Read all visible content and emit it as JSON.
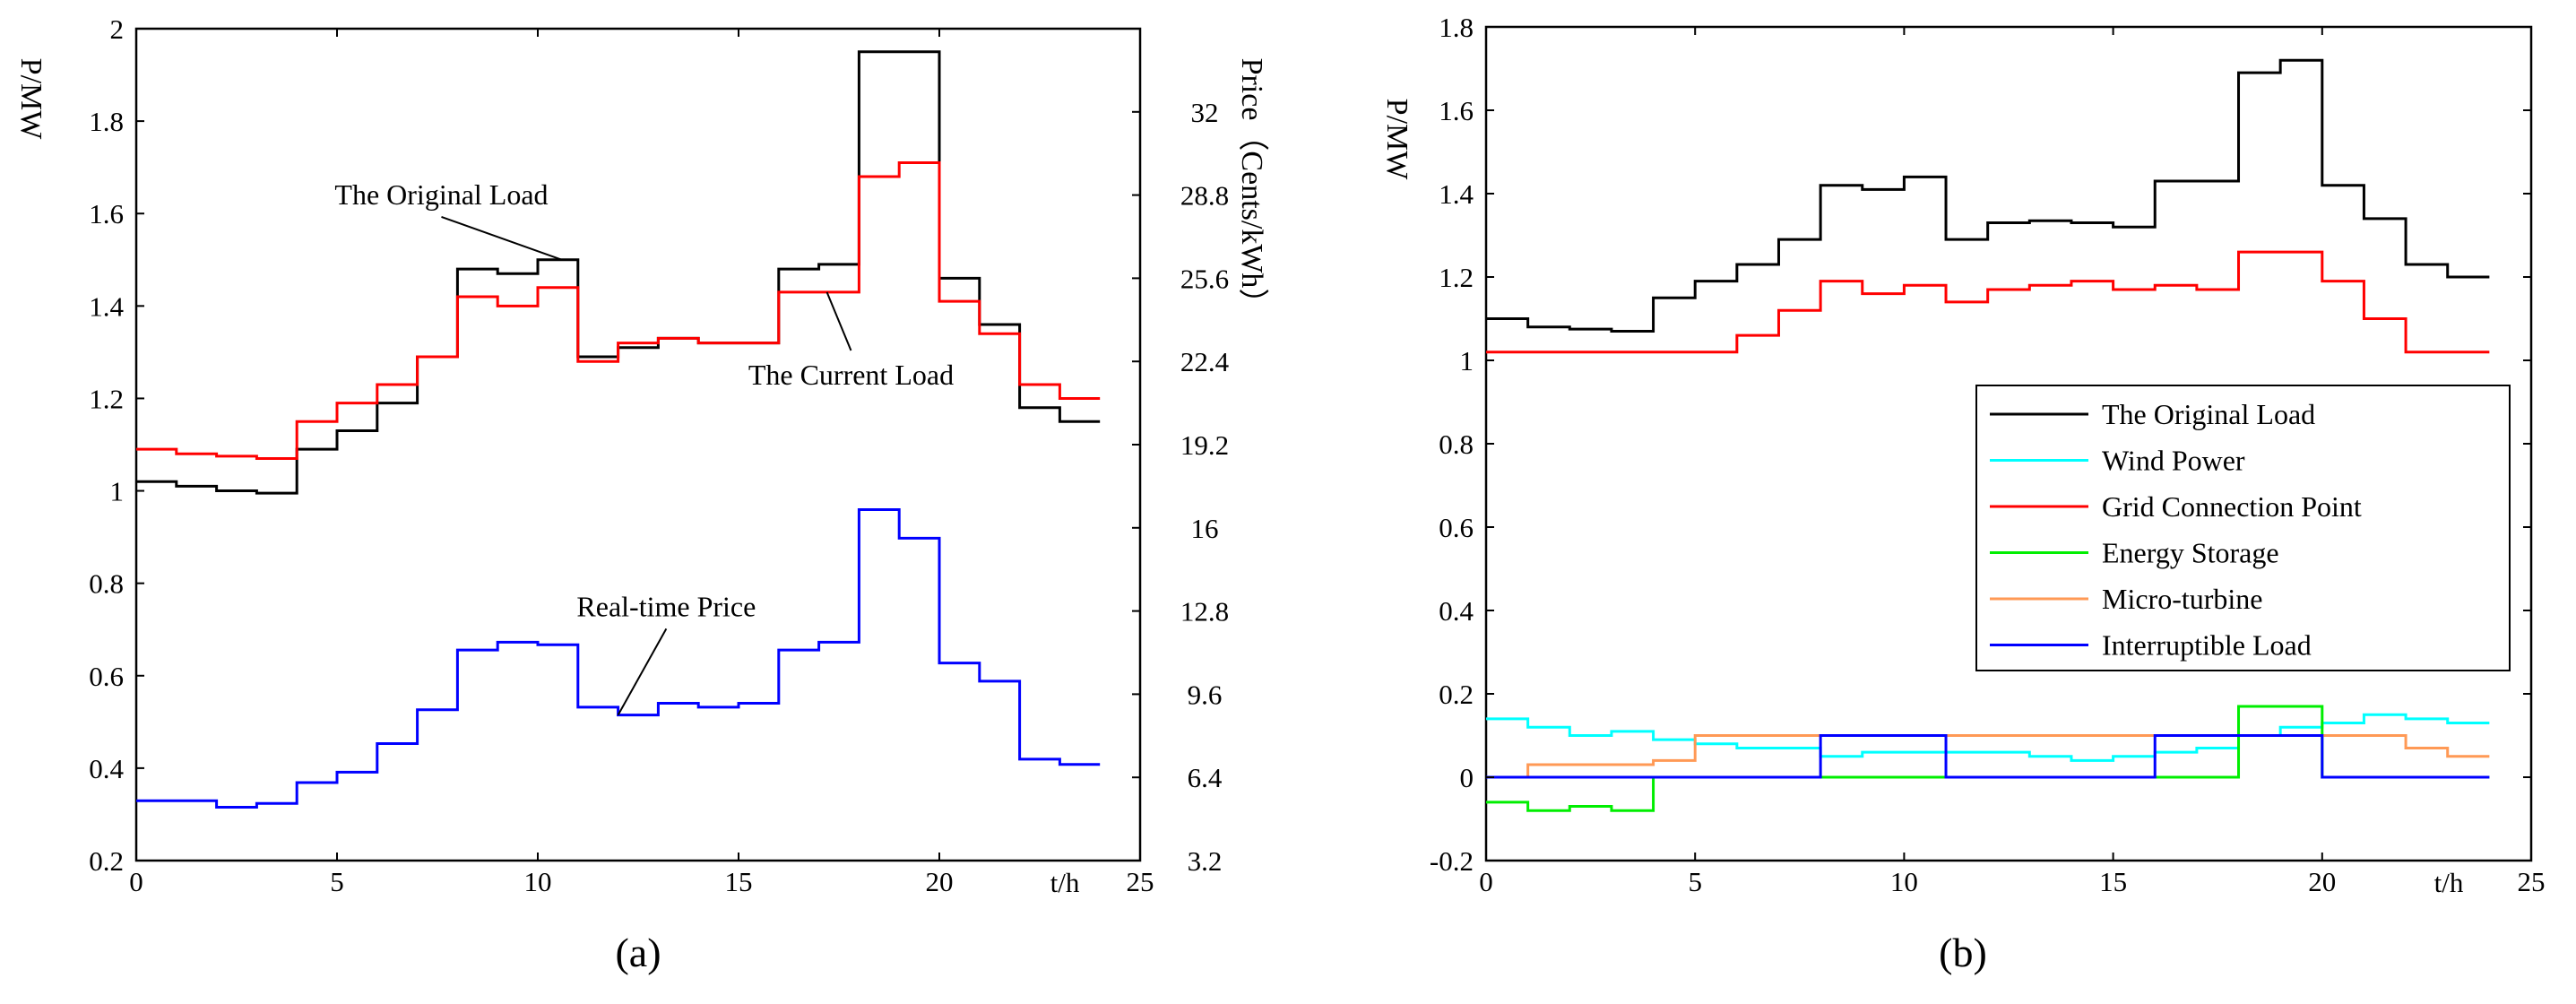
{
  "chart_data": [
    {
      "type": "line",
      "step": true,
      "panel_label": "(a)",
      "xlabel": "t/h",
      "ylabel": "P/MW",
      "y2label": "Price（Cents/kWh）",
      "xlim": [
        0,
        25
      ],
      "ylim": [
        0.2,
        2
      ],
      "y2lim": [
        3.2,
        35.2
      ],
      "x_ticks": [
        "0",
        "5",
        "10",
        "15",
        "20",
        "25"
      ],
      "y_ticks": [
        "0.2",
        "0.4",
        "0.6",
        "0.8",
        "1",
        "1.2",
        "1.4",
        "1.6",
        "1.8",
        "2"
      ],
      "y2_ticks": [
        "3.2",
        "6.4",
        "9.6",
        "12.8",
        "16",
        "19.2",
        "22.4",
        "25.6",
        "28.8",
        "32"
      ],
      "x": [
        0,
        1,
        2,
        3,
        4,
        5,
        6,
        7,
        8,
        9,
        10,
        11,
        12,
        13,
        14,
        15,
        16,
        17,
        18,
        19,
        20,
        21,
        22,
        23,
        24
      ],
      "series": [
        {
          "name": "The Original Load",
          "color": "#000000",
          "axis": "left",
          "values": [
            1.02,
            1.01,
            1.0,
            0.995,
            1.09,
            1.13,
            1.19,
            1.29,
            1.48,
            1.47,
            1.5,
            1.29,
            1.31,
            1.33,
            1.32,
            1.32,
            1.48,
            1.49,
            1.95,
            1.95,
            1.46,
            1.36,
            1.18,
            1.15,
            1.15
          ]
        },
        {
          "name": "The Current Load",
          "color": "#ff0000",
          "axis": "left",
          "values": [
            1.09,
            1.08,
            1.075,
            1.07,
            1.15,
            1.19,
            1.23,
            1.29,
            1.42,
            1.4,
            1.44,
            1.28,
            1.32,
            1.33,
            1.32,
            1.32,
            1.43,
            1.43,
            1.68,
            1.71,
            1.41,
            1.34,
            1.23,
            1.2,
            1.2
          ]
        },
        {
          "name": "Real-time Price",
          "color": "#0000ff",
          "axis": "right",
          "values": [
            5.5,
            5.5,
            5.25,
            5.4,
            6.2,
            6.6,
            7.7,
            9.0,
            11.3,
            11.6,
            11.5,
            9.1,
            8.8,
            9.25,
            9.1,
            9.25,
            11.3,
            11.6,
            16.7,
            15.6,
            10.8,
            10.1,
            7.1,
            6.9,
            6.9
          ]
        }
      ],
      "annotations": [
        {
          "text": "The Original Load",
          "target": [
            10.6,
            1.5
          ],
          "pos": [
            7.6,
            1.62
          ]
        },
        {
          "text": "The Current Load",
          "target": [
            17.2,
            1.43
          ],
          "pos": [
            17.8,
            1.23
          ]
        },
        {
          "text": "Real-time Price",
          "target": [
            12,
            8.8
          ],
          "pos": [
            13.2,
            12.6
          ]
        }
      ]
    },
    {
      "type": "line",
      "step": true,
      "panel_label": "(b)",
      "xlabel": "t/h",
      "ylabel": "P/MW",
      "xlim": [
        0,
        25
      ],
      "ylim": [
        -0.2,
        1.8
      ],
      "x_ticks": [
        "0",
        "5",
        "10",
        "15",
        "20",
        "25"
      ],
      "y_ticks": [
        "-0.2",
        "0",
        "0.2",
        "0.4",
        "0.6",
        "0.8",
        "1",
        "1.2",
        "1.4",
        "1.6",
        "1.8"
      ],
      "legend_position": "center-right",
      "x": [
        0,
        1,
        2,
        3,
        4,
        5,
        6,
        7,
        8,
        9,
        10,
        11,
        12,
        13,
        14,
        15,
        16,
        17,
        18,
        19,
        20,
        21,
        22,
        23,
        24
      ],
      "series": [
        {
          "name": "The Original Load",
          "color": "#000000",
          "values": [
            1.1,
            1.08,
            1.075,
            1.07,
            1.15,
            1.19,
            1.23,
            1.29,
            1.42,
            1.41,
            1.44,
            1.29,
            1.33,
            1.335,
            1.33,
            1.32,
            1.43,
            1.43,
            1.69,
            1.72,
            1.42,
            1.34,
            1.23,
            1.2,
            1.2
          ]
        },
        {
          "name": "Wind Power",
          "color": "#00ffff",
          "values": [
            0.14,
            0.12,
            0.1,
            0.11,
            0.09,
            0.08,
            0.07,
            0.07,
            0.05,
            0.06,
            0.06,
            0.06,
            0.06,
            0.05,
            0.04,
            0.05,
            0.06,
            0.07,
            0.1,
            0.12,
            0.13,
            0.15,
            0.14,
            0.13,
            0.13
          ]
        },
        {
          "name": "Grid Connection Point",
          "color": "#ff0000",
          "values": [
            1.02,
            1.02,
            1.02,
            1.02,
            1.02,
            1.02,
            1.06,
            1.12,
            1.19,
            1.16,
            1.18,
            1.14,
            1.17,
            1.18,
            1.19,
            1.17,
            1.18,
            1.17,
            1.26,
            1.26,
            1.19,
            1.1,
            1.02,
            1.02,
            1.02
          ]
        },
        {
          "name": "Energy Storage",
          "color": "#00ee00",
          "values": [
            -0.06,
            -0.08,
            -0.07,
            -0.08,
            0,
            0,
            0,
            0,
            0,
            0,
            0,
            0,
            0,
            0,
            0,
            0,
            0,
            0,
            0.17,
            0.17,
            0,
            0,
            0,
            0,
            0
          ]
        },
        {
          "name": "Micro-turbine",
          "color": "#ff9955",
          "values": [
            0,
            0.03,
            0.03,
            0.03,
            0.04,
            0.1,
            0.1,
            0.1,
            0.1,
            0.1,
            0.1,
            0.1,
            0.1,
            0.1,
            0.1,
            0.1,
            0.1,
            0.1,
            0.1,
            0.1,
            0.1,
            0.1,
            0.07,
            0.05,
            0.05
          ]
        },
        {
          "name": "Interruptible Load",
          "color": "#0000ff",
          "values": [
            0,
            0,
            0,
            0,
            0,
            0,
            0,
            0,
            0.1,
            0.1,
            0.1,
            0,
            0,
            0,
            0,
            0,
            0.1,
            0.1,
            0.1,
            0.1,
            0,
            0,
            0,
            0,
            0
          ]
        }
      ]
    }
  ]
}
